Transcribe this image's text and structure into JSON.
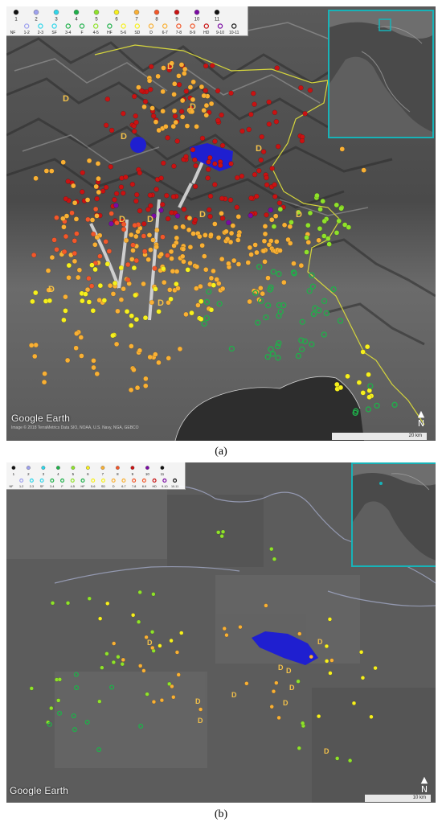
{
  "colors": {
    "c1": "#f4f4f4",
    "c2": "#9ea1ee",
    "c3": "#2fd6ea",
    "c4": "#1fb04a",
    "c5": "#8fe22a",
    "c6": "#f7f01d",
    "c7": "#f9b034",
    "c8": "#f2572a",
    "c9": "#c91212",
    "c10": "#7a0aa3",
    "c11": "#111111",
    "zone": "#1f1fd0",
    "border": "#d6d63c",
    "inset_frame": "#17b3b8"
  },
  "legend": {
    "top_labels": [
      "1",
      "2",
      "3",
      "4",
      "5",
      "6",
      "7",
      "8",
      "9",
      "10",
      "11"
    ],
    "bottom_labels": [
      "NF",
      "1-2",
      "2-3",
      "SF",
      "3-4",
      "F",
      "4-5",
      "HF",
      "5-6",
      "SD",
      "D",
      "6-7",
      "7-8",
      "8-9",
      "HD",
      "9-10",
      "10-11"
    ]
  },
  "panel_a": {
    "d_letter": "D",
    "watermark": "Google Earth",
    "attribution": "Image © 2018 TerraMetrics Data SIO, NOAA, U.S. Navy, NGA, GEBCO",
    "scale_label": "20 km",
    "north_label": "N",
    "caption": "(a)"
  },
  "panel_b": {
    "d_letter": "D",
    "watermark": "Google Earth",
    "scale_label": "10 km",
    "north_label": "N",
    "caption": "(b)"
  }
}
